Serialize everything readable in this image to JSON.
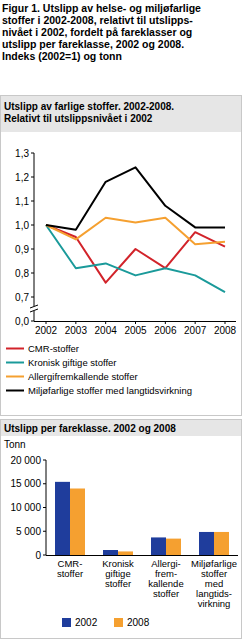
{
  "title": "Figur 1. Utslipp av helse- og miljøfarlige\nstoffer i 2002-2008, relativt til utslipps-\nnivået i 2002, fordelt på fareklasser og\nutslipp per fareklasse, 2002 og 2008.\nIndeks (2002=1) og tonn",
  "chart_data": [
    {
      "type": "line",
      "title": "Utslipp av farlige stoffer. 2002-2008.\nRelativt til utslippsnivået i 2002",
      "categories": [
        "2002",
        "2003",
        "2004",
        "2005",
        "2006",
        "2007",
        "2008"
      ],
      "series": [
        {
          "name": "CMR-stoffer",
          "color": "#d2232a",
          "values": [
            1.0,
            0.95,
            0.76,
            0.9,
            0.82,
            0.97,
            0.91
          ]
        },
        {
          "name": "Kronisk giftige stoffer",
          "color": "#1a9a9a",
          "values": [
            1.0,
            0.82,
            0.84,
            0.79,
            0.82,
            0.79,
            0.72
          ]
        },
        {
          "name": "Allergifremkallende stoffer",
          "color": "#f5a030",
          "values": [
            1.0,
            0.94,
            1.03,
            1.01,
            1.03,
            0.92,
            0.93
          ]
        },
        {
          "name": "Miljøfarlige stoffer med langtidsvirkning",
          "color": "#000000",
          "values": [
            1.0,
            0.98,
            1.18,
            1.24,
            1.08,
            0.99,
            0.99
          ]
        }
      ],
      "ylim": [
        0,
        1.3
      ],
      "yticks": [
        {
          "value": 0,
          "label": "0,0"
        },
        {
          "value": 0.7,
          "label": "0,7"
        },
        {
          "value": 0.8,
          "label": "0,8"
        },
        {
          "value": 0.9,
          "label": "0,9"
        },
        {
          "value": 1.0,
          "label": "1,0"
        },
        {
          "value": 1.1,
          "label": "1,1"
        },
        {
          "value": 1.2,
          "label": "1,2"
        },
        {
          "value": 1.3,
          "label": "1,3"
        }
      ],
      "grid": false,
      "legend": "bottom"
    },
    {
      "type": "bar",
      "title": "Utslipp per fareklasse. 2002 og 2008",
      "y_label": "Tonn",
      "categories": [
        "CMR-\nstoffer",
        "Kronisk\ngiftige\nstoffer",
        "Allergi-\nfrem-\nkallende\nstoffer",
        "Miljøfarlige\nstoffer\nmed\nlangtids-\nvirkning"
      ],
      "series": [
        {
          "name": "2002",
          "color": "#1f3d9c",
          "values": [
            15400,
            1050,
            3700,
            4850
          ]
        },
        {
          "name": "2008",
          "color": "#f5a030",
          "values": [
            14000,
            750,
            3450,
            4850
          ]
        }
      ],
      "ylim": [
        0,
        20000
      ],
      "yticks": [
        0,
        {
          "value": 5000,
          "label": "5 000"
        },
        {
          "value": 10000,
          "label": "10 000"
        },
        {
          "value": 15000,
          "label": "15 000"
        },
        {
          "value": 20000,
          "label": "20 000"
        }
      ],
      "grid": false,
      "legend": "bottom"
    }
  ]
}
